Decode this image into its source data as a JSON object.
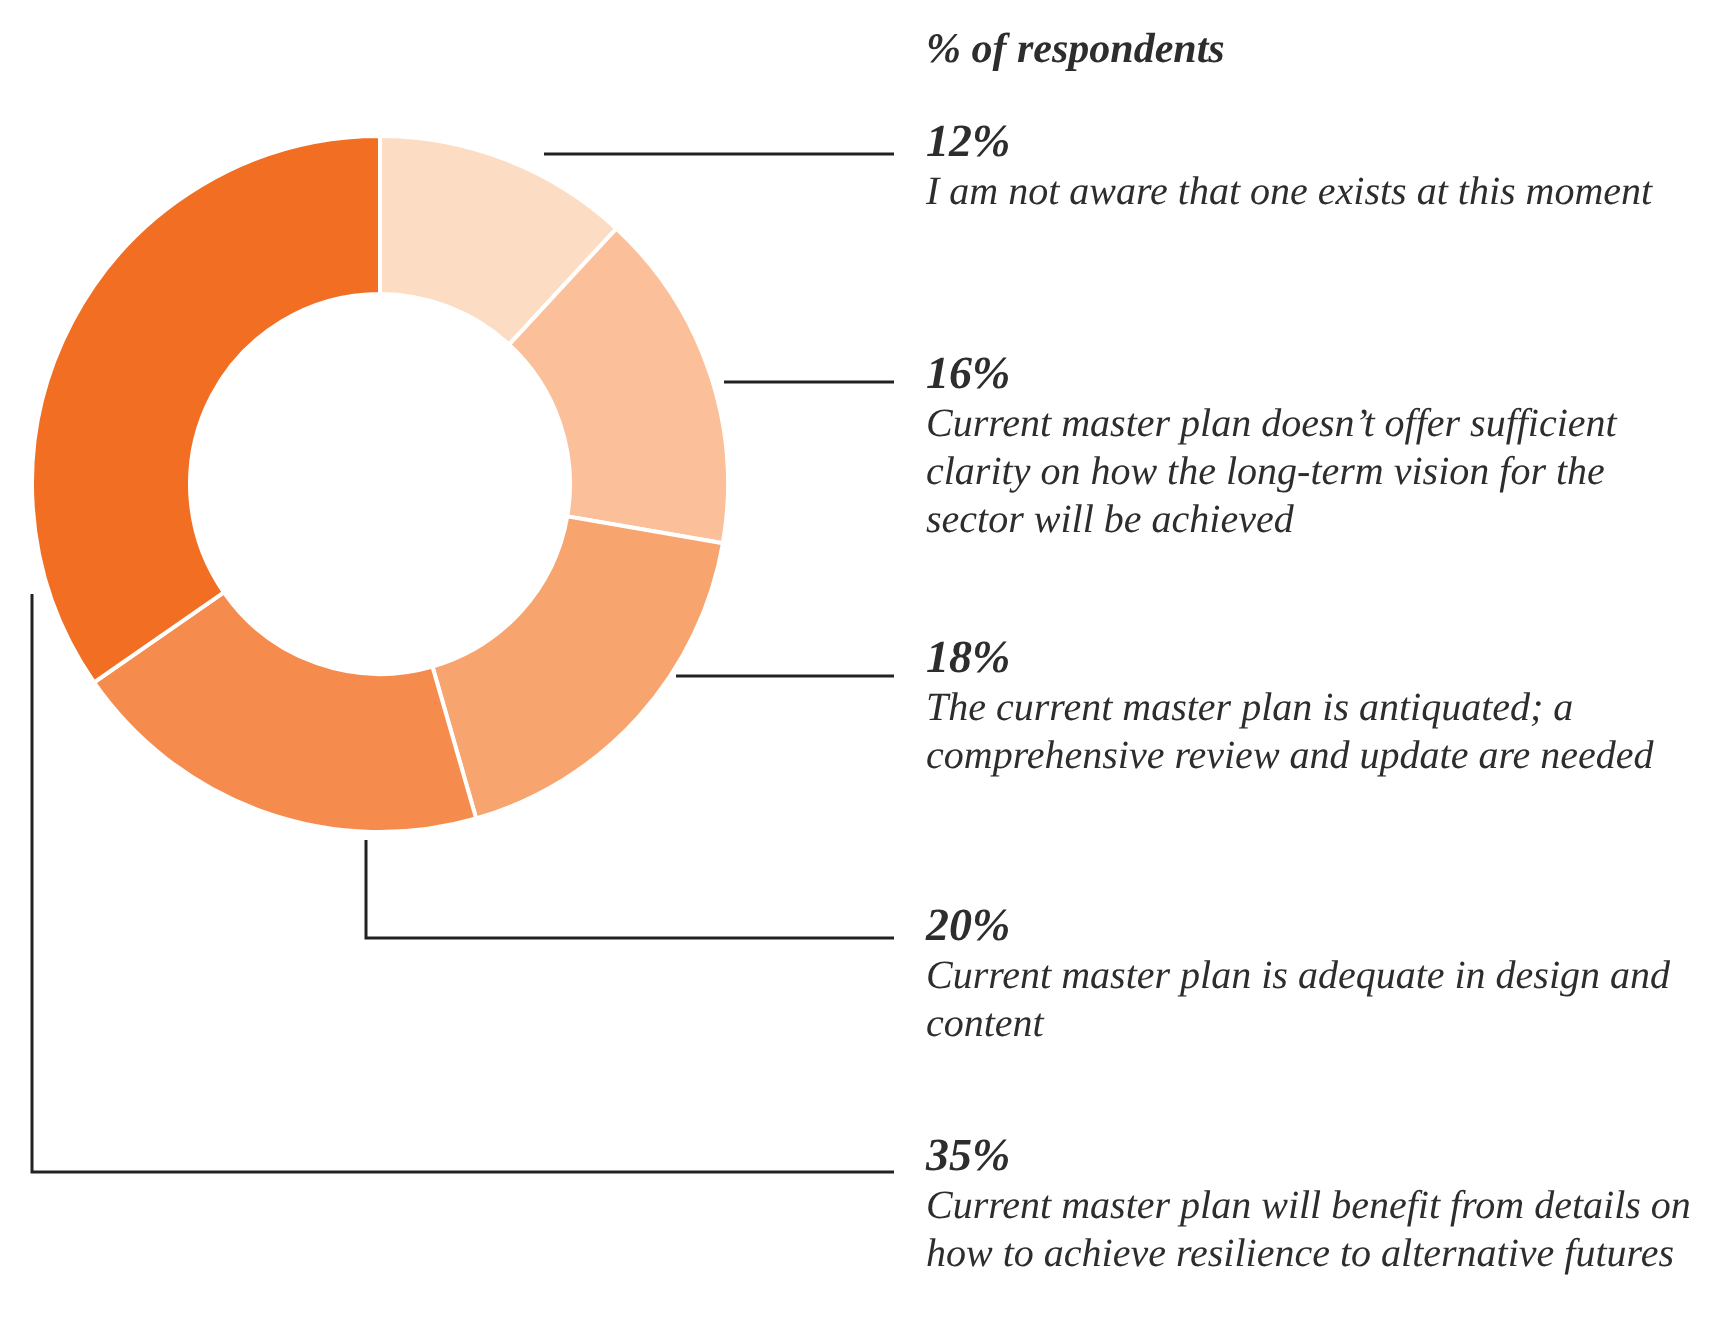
{
  "chart_data": {
    "type": "donut",
    "title": "% of respondents",
    "categories": [
      "I am not aware that one exists at this moment",
      "Current master plan doesn’t offer sufficient clarity on how the long-term vision for the sector will be achieved",
      "The current master plan is antiquated; a comprehensive review and update are needed",
      "Current master plan is adequate in design and content",
      "Current master plan will benefit from details on how to achieve resilience to alternative futures"
    ],
    "values": [
      12,
      16,
      18,
      20,
      35
    ],
    "value_labels": [
      "12%",
      "16%",
      "18%",
      "20%",
      "35%"
    ],
    "colors": [
      "#fddcc4",
      "#fbc09a",
      "#f8a46f",
      "#f58b4c",
      "#f26e23"
    ],
    "legend": false
  }
}
